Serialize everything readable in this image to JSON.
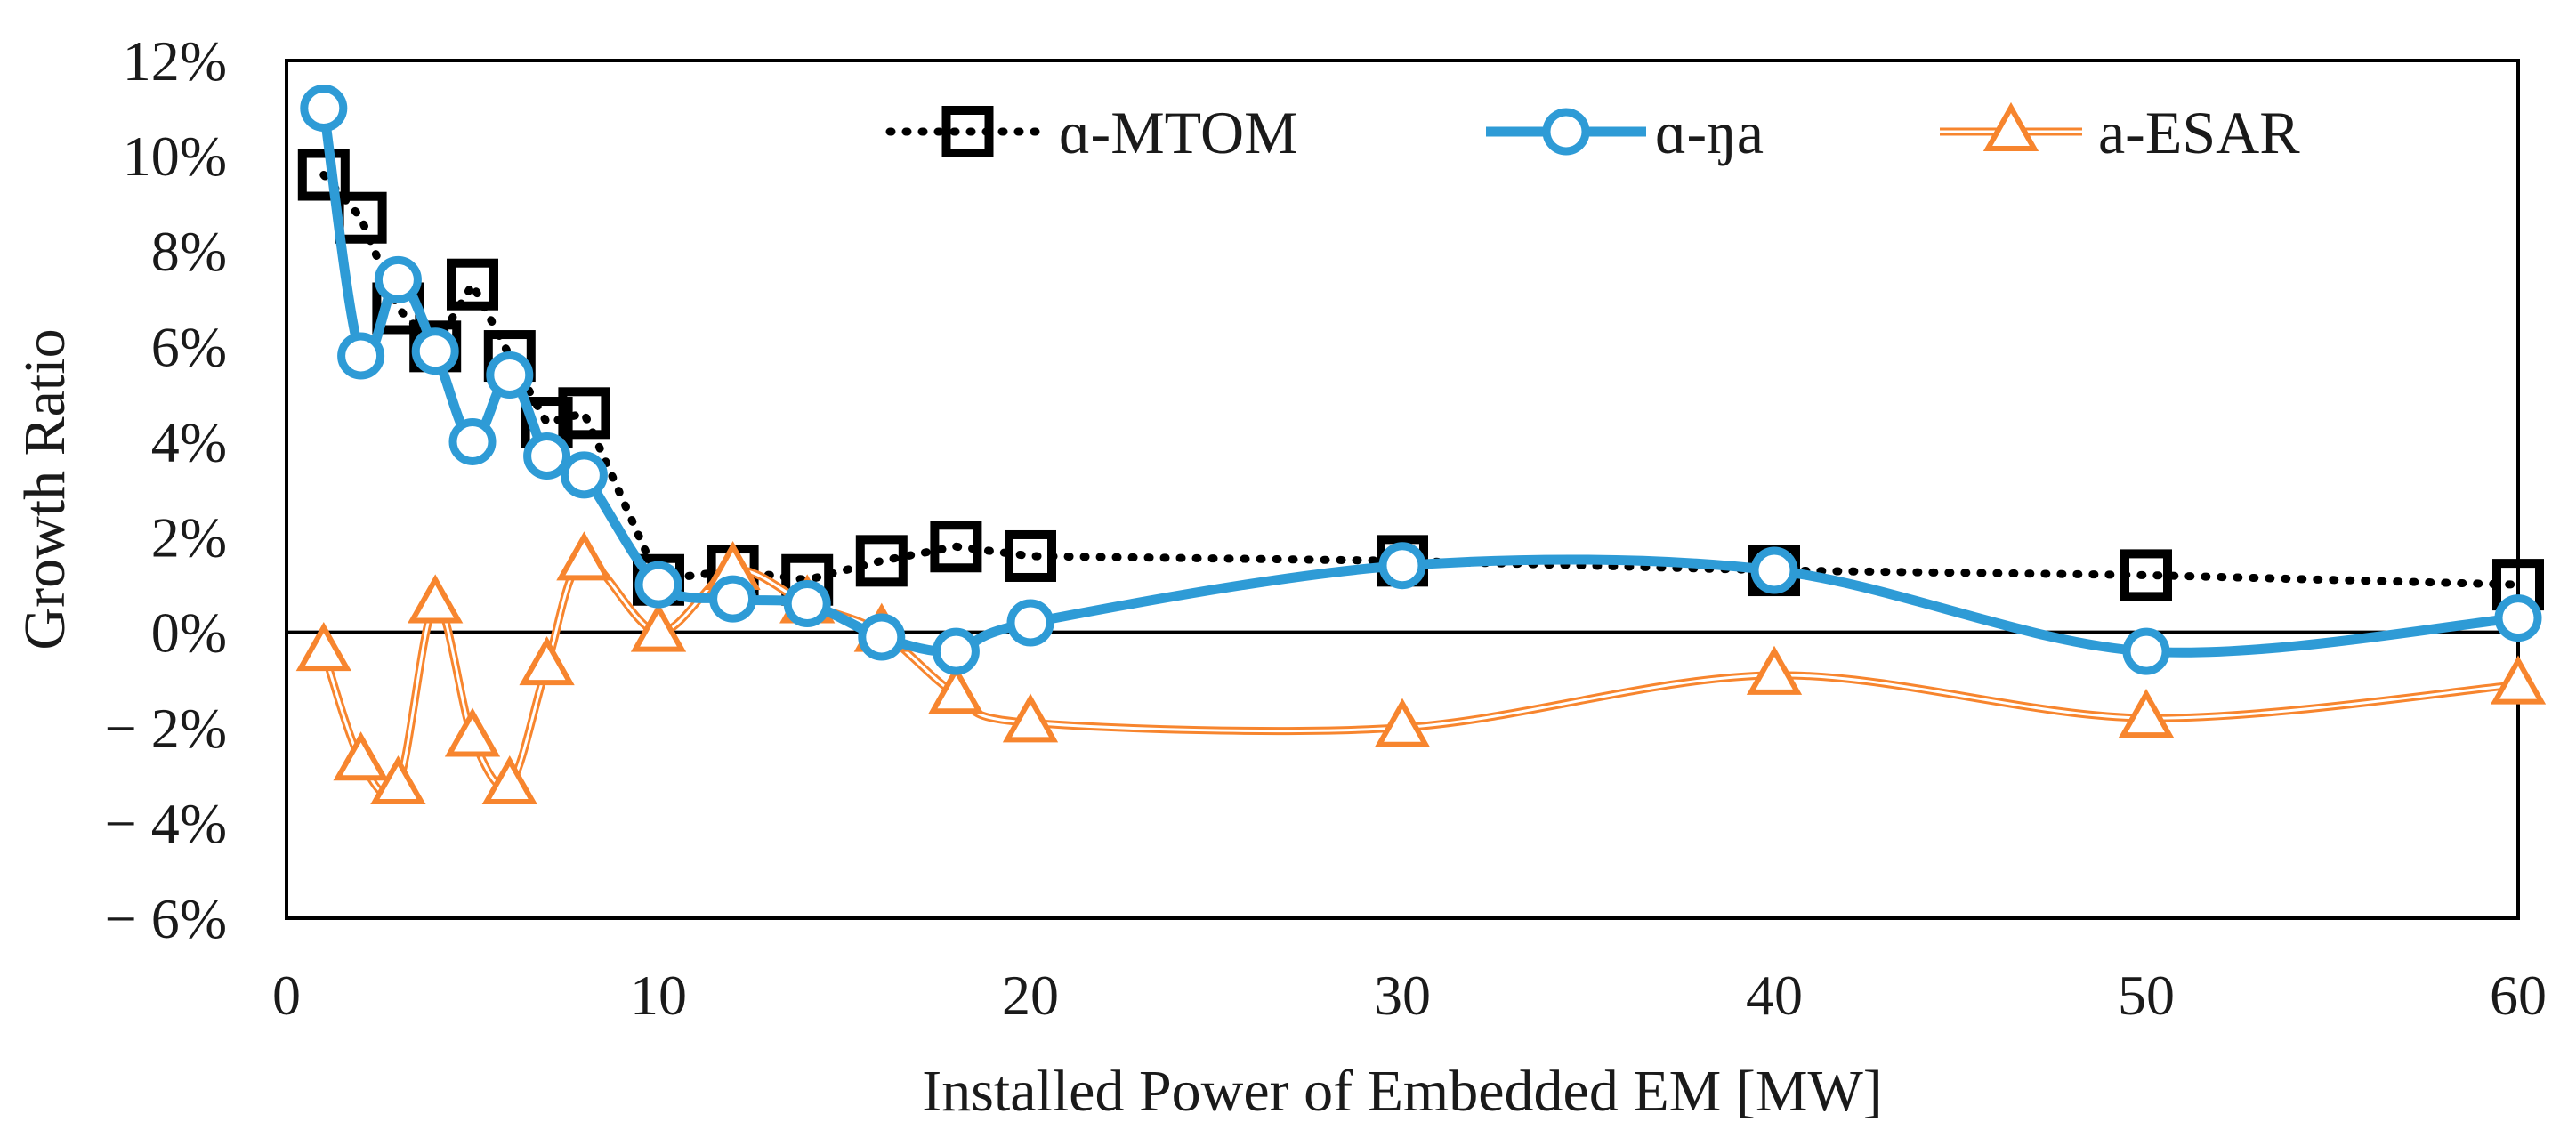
{
  "chart_data": {
    "type": "line",
    "title": "",
    "xlabel": "Installed Power of Embedded EM [MW]",
    "ylabel": "Growth Ratio",
    "xlim": [
      0,
      60
    ],
    "ylim": [
      -6,
      12
    ],
    "x_ticks": [
      0,
      10,
      20,
      30,
      40,
      50,
      60
    ],
    "x_tick_labels": [
      "0",
      "10",
      "20",
      "30",
      "40",
      "50",
      "60"
    ],
    "y_ticks": [
      -6,
      -4,
      -2,
      0,
      2,
      4,
      6,
      8,
      10,
      12
    ],
    "y_tick_labels": [
      "− 6%",
      "− 4%",
      "− 2%",
      "0%",
      "2%",
      "4%",
      "6%",
      "8%",
      "10%",
      "12%"
    ],
    "legend_position": "top-right",
    "series": [
      {
        "name": "ɑ-MTOM",
        "style": "dotted",
        "marker": "square",
        "color": "#000000",
        "x": [
          1,
          2,
          3,
          4,
          5,
          6,
          7,
          8,
          10,
          12,
          14,
          16,
          18,
          20,
          30,
          40,
          50,
          60
        ],
        "values": [
          9.6,
          8.7,
          6.8,
          6.0,
          7.3,
          5.8,
          4.4,
          4.6,
          1.1,
          1.3,
          1.1,
          1.5,
          1.8,
          1.6,
          1.5,
          1.3,
          1.2,
          1.0
        ]
      },
      {
        "name": "ɑ-ŋa",
        "style": "solid",
        "marker": "circle",
        "color": "#2e9bd6",
        "x": [
          1,
          2,
          3,
          4,
          5,
          6,
          7,
          8,
          10,
          12,
          14,
          16,
          18,
          20,
          30,
          40,
          50,
          60
        ],
        "values": [
          11.0,
          5.8,
          7.4,
          5.9,
          4.0,
          5.4,
          3.7,
          3.3,
          1.0,
          0.7,
          0.6,
          -0.1,
          -0.4,
          0.2,
          1.4,
          1.3,
          -0.4,
          0.3
        ]
      },
      {
        "name": "a-ESAR",
        "style": "double",
        "marker": "triangle",
        "color": "#f7852e",
        "x": [
          1,
          2,
          3,
          4,
          5,
          6,
          7,
          8,
          10,
          12,
          14,
          16,
          18,
          20,
          30,
          40,
          50,
          60
        ],
        "values": [
          -0.4,
          -2.7,
          -3.2,
          0.6,
          -2.2,
          -3.2,
          -0.7,
          1.5,
          0.0,
          1.3,
          0.6,
          0.0,
          -1.3,
          -1.9,
          -2.0,
          -0.9,
          -1.8,
          -1.1
        ]
      }
    ]
  }
}
